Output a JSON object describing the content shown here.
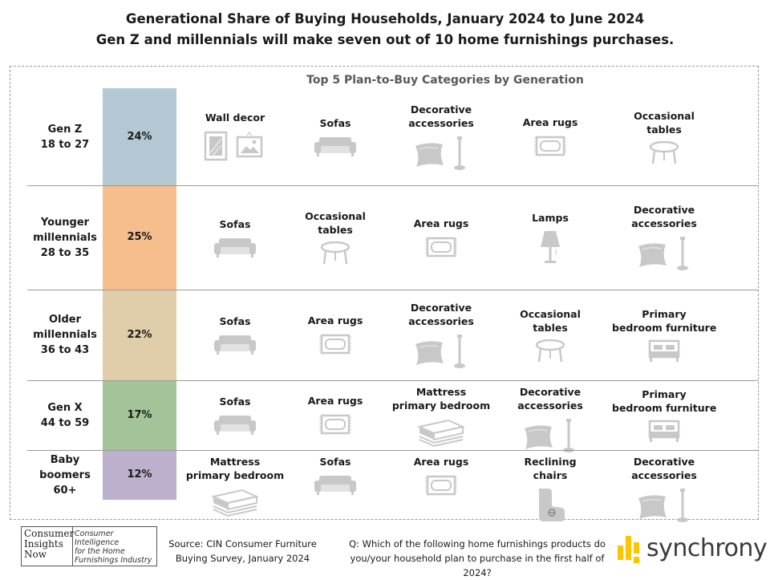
{
  "title": "Generational Share of Buying Households, January 2024 to June 2024",
  "headline": "Gen Z and millennials will make seven out of 10 home furnishings purchases.",
  "subtitle": "Top 5 Plan-to-Buy Categories by Generation",
  "colors": {
    "gen_z": "#b4c8d4",
    "younger_millennials": "#f5be8c",
    "older_millennials": "#e0cda9",
    "gen_x": "#a3c498",
    "baby_boomers": "#bcb0cc",
    "icon": "#c8c8c8"
  },
  "chart_data": {
    "type": "table",
    "series": [
      {
        "values": [
          24,
          25,
          22,
          17,
          12
        ]
      }
    ],
    "rows": [
      {
        "generation": [
          "Gen Z",
          "18 to 27"
        ],
        "share": "24%",
        "categories": [
          {
            "label": [
              "Wall decor"
            ],
            "icon": "wall-decor"
          },
          {
            "label": [
              "Sofas"
            ],
            "icon": "sofa"
          },
          {
            "label": [
              "Decorative",
              "accessories"
            ],
            "icon": "decorative-accessories"
          },
          {
            "label": [
              "Area rugs"
            ],
            "icon": "area-rug"
          },
          {
            "label": [
              "Occasional",
              "tables"
            ],
            "icon": "occasional-table"
          }
        ]
      },
      {
        "generation": [
          "Younger",
          "millennials",
          "28 to 35"
        ],
        "share": "25%",
        "categories": [
          {
            "label": [
              "Sofas"
            ],
            "icon": "sofa"
          },
          {
            "label": [
              "Occasional",
              "tables"
            ],
            "icon": "occasional-table"
          },
          {
            "label": [
              "Area rugs"
            ],
            "icon": "area-rug"
          },
          {
            "label": [
              "Lamps"
            ],
            "icon": "lamp"
          },
          {
            "label": [
              "Decorative",
              "accessories"
            ],
            "icon": "decorative-accessories"
          }
        ]
      },
      {
        "generation": [
          "Older",
          "millennials",
          "36 to 43"
        ],
        "share": "22%",
        "categories": [
          {
            "label": [
              "Sofas"
            ],
            "icon": "sofa"
          },
          {
            "label": [
              "Area rugs"
            ],
            "icon": "area-rug"
          },
          {
            "label": [
              "Decorative",
              "accessories"
            ],
            "icon": "decorative-accessories"
          },
          {
            "label": [
              "Occasional",
              "tables"
            ],
            "icon": "occasional-table"
          },
          {
            "label": [
              "Primary",
              "bedroom furniture"
            ],
            "icon": "bed"
          }
        ]
      },
      {
        "generation": [
          "Gen X",
          "44 to 59"
        ],
        "share": "17%",
        "categories": [
          {
            "label": [
              "Sofas"
            ],
            "icon": "sofa"
          },
          {
            "label": [
              "Area rugs"
            ],
            "icon": "area-rug"
          },
          {
            "label": [
              "Mattress",
              "primary bedroom"
            ],
            "icon": "mattress"
          },
          {
            "label": [
              "Decorative",
              "accessories"
            ],
            "icon": "decorative-accessories"
          },
          {
            "label": [
              "Primary",
              "bedroom furniture"
            ],
            "icon": "bed"
          }
        ]
      },
      {
        "generation": [
          "Baby",
          "boomers",
          "60+"
        ],
        "share": "12%",
        "categories": [
          {
            "label": [
              "Mattress",
              "primary bedroom"
            ],
            "icon": "mattress"
          },
          {
            "label": [
              "Sofas"
            ],
            "icon": "sofa"
          },
          {
            "label": [
              "Area rugs"
            ],
            "icon": "area-rug"
          },
          {
            "label": [
              "Reclining",
              "chairs"
            ],
            "icon": "recliner"
          },
          {
            "label": [
              "Decorative",
              "accessories"
            ],
            "icon": "decorative-accessories"
          }
        ]
      }
    ]
  },
  "footer": {
    "logo_left": [
      "Consumer",
      "Insights",
      "Now"
    ],
    "logo_right": [
      "Consumer Intelligence",
      "for the Home",
      "Furnishings Industry"
    ],
    "source": [
      "Source: CIN Consumer Furniture",
      "Buying Survey, January 2024"
    ],
    "question": [
      "Q: Which of the following home furnishings products do",
      "you/your household plan to purchase in the first half of 2024?"
    ],
    "brand": "synchrony"
  }
}
